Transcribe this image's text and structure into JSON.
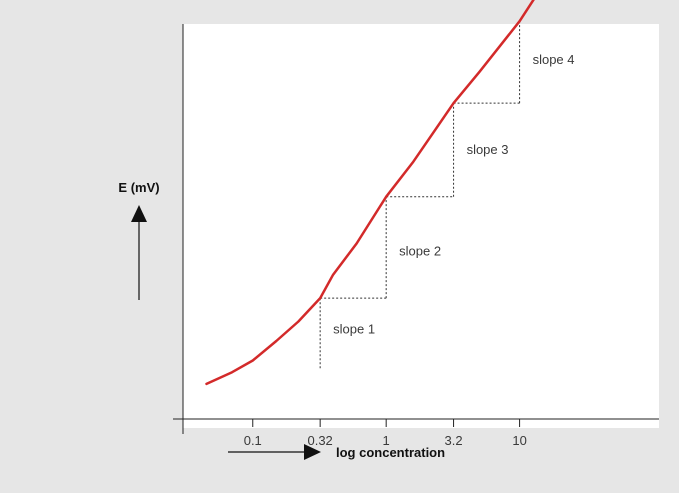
{
  "colors": {
    "background": "#e6e6e6",
    "plot_background": "#ffffff",
    "curve": "#d32a2a",
    "axis": "#222222",
    "guide": "#333333"
  },
  "chart_data": {
    "type": "line",
    "title": "",
    "xlabel": "log concentration",
    "ylabel": "E (mV)",
    "x_scale": "log",
    "xlim": [
      0.03,
      100
    ],
    "ylim": [
      0,
      100
    ],
    "grid": false,
    "x_ticks": [
      {
        "value": 0.1,
        "label": "0.1"
      },
      {
        "value": 0.32,
        "label": "0.32"
      },
      {
        "value": 1,
        "label": "1"
      },
      {
        "value": 3.2,
        "label": "3.2"
      },
      {
        "value": 10,
        "label": "10"
      }
    ],
    "series": [
      {
        "x": [
          0.045,
          0.07,
          0.1,
          0.15,
          0.22,
          0.32,
          0.4,
          0.6,
          1,
          1.6,
          3.2,
          5,
          10,
          13
        ],
        "y": [
          9,
          12,
          15,
          20,
          25,
          31,
          37,
          45,
          57,
          66,
          81,
          89,
          102,
          108
        ]
      }
    ],
    "annotations": [
      {
        "label": "slope 1",
        "from_x": 0.32,
        "to_x": 1,
        "y_low": 13,
        "y_high": 31,
        "text_x": 0.32,
        "text_y": 23
      },
      {
        "label": "slope 2",
        "from_x": 1,
        "to_x": 3.2,
        "y_low": 31,
        "y_high": 57,
        "text_x": 1,
        "text_y": 43
      },
      {
        "label": "slope 3",
        "from_x": 3.2,
        "to_x": 10,
        "y_low": 57,
        "y_high": 81,
        "text_x": 3.2,
        "text_y": 69
      },
      {
        "label": "slope 4",
        "from_x": 10,
        "to_x": null,
        "y_low": 81,
        "y_high": 102,
        "text_x": 10,
        "text_y": 92
      }
    ]
  }
}
